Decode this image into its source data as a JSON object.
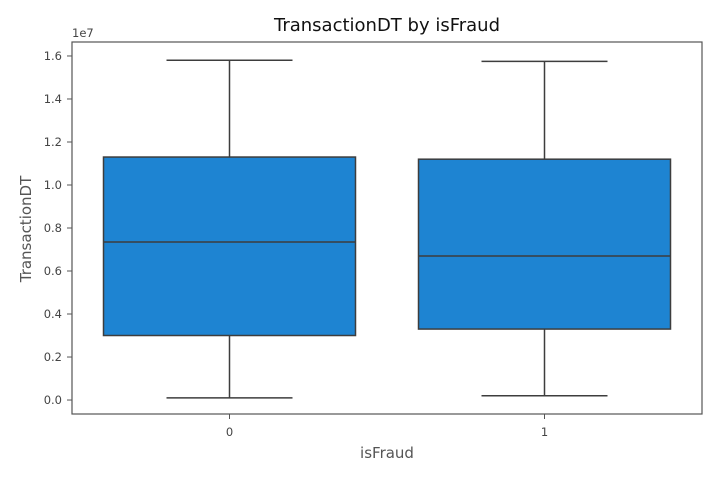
{
  "chart_data": {
    "type": "box",
    "title": "TransactionDT by isFraud",
    "xlabel": "isFraud",
    "ylabel": "TransactionDT",
    "y_offset_label": "1e7",
    "categories": [
      "0",
      "1"
    ],
    "boxes": [
      {
        "category": "0",
        "whisker_low": 0.01,
        "q1": 0.3,
        "median": 0.735,
        "q3": 1.13,
        "whisker_high": 1.58
      },
      {
        "category": "1",
        "whisker_low": 0.02,
        "q1": 0.33,
        "median": 0.67,
        "q3": 1.12,
        "whisker_high": 1.575
      }
    ],
    "y_ticks": [
      "0.0",
      "0.2",
      "0.4",
      "0.6",
      "0.8",
      "1.0",
      "1.2",
      "1.4",
      "1.6"
    ],
    "y_tick_values": [
      0.0,
      0.2,
      0.4,
      0.6,
      0.8,
      1.0,
      1.2,
      1.4,
      1.6
    ],
    "ylim": [
      -0.065,
      1.665
    ],
    "grid": false,
    "legend": "none",
    "colors": {
      "box_fill": "#1e84d2",
      "line": "#3d3d3d",
      "frame": "#555555"
    }
  }
}
